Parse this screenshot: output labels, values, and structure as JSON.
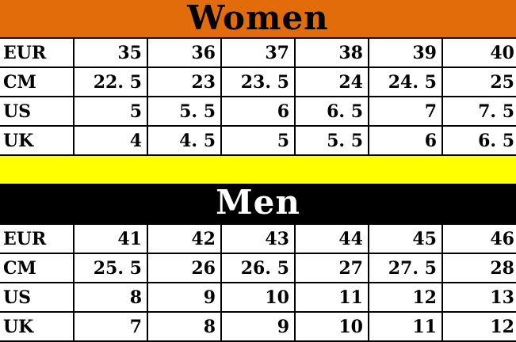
{
  "chart_data": [
    {
      "type": "table",
      "title": "Women",
      "header_bg": "#E26C09",
      "title_color": "#000000",
      "rows": [
        {
          "label": "EUR",
          "values": [
            "35",
            "36",
            "37",
            "38",
            "39",
            "40"
          ]
        },
        {
          "label": "CM",
          "values": [
            "22. 5",
            "23",
            "23. 5",
            "24",
            "24. 5",
            "25"
          ]
        },
        {
          "label": "US",
          "values": [
            "5",
            "5. 5",
            "6",
            "6. 5",
            "7",
            "7. 5"
          ]
        },
        {
          "label": "UK",
          "values": [
            "4",
            "4. 5",
            "5",
            "5. 5",
            "6",
            "6. 5"
          ]
        }
      ]
    },
    {
      "type": "table",
      "title": "Men",
      "header_bg": "#000000",
      "title_color": "#FFFFFF",
      "rows": [
        {
          "label": "EUR",
          "values": [
            "41",
            "42",
            "43",
            "44",
            "45",
            "46"
          ]
        },
        {
          "label": "CM",
          "values": [
            "25. 5",
            "26",
            "26. 5",
            "27",
            "27. 5",
            "28"
          ]
        },
        {
          "label": "US",
          "values": [
            "8",
            "9",
            "10",
            "11",
            "12",
            "13"
          ]
        },
        {
          "label": "UK",
          "values": [
            "7",
            "8",
            "9",
            "10",
            "11",
            "12"
          ]
        }
      ]
    }
  ],
  "divider": {
    "color": "#FFFF00"
  },
  "grid": {
    "border_color": "#000000",
    "cell_bg": "#FFFFFF"
  }
}
